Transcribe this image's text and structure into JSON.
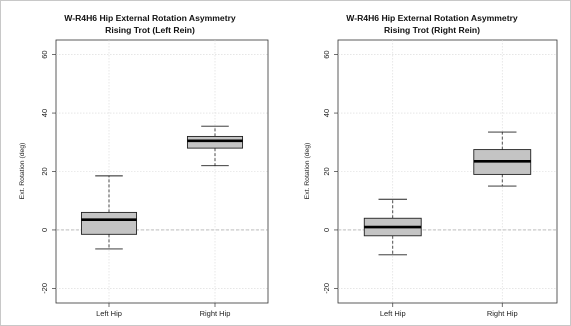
{
  "chart_data": [
    {
      "type": "box",
      "title": "W-R4H6 Hip External Rotation Asymmetry",
      "subtitle": "Rising Trot (Left Rein)",
      "xlabel": "",
      "ylabel": "Ext. Rotation (deg)",
      "ylim": [
        -25,
        65
      ],
      "yticks": [
        -20,
        0,
        20,
        40,
        60
      ],
      "grid": true,
      "reference_line": 0,
      "categories": [
        "Left Hip",
        "Right Hip"
      ],
      "boxes": [
        {
          "category": "Left Hip",
          "min": -6.5,
          "q1": -1.5,
          "median": 3.5,
          "q3": 6,
          "max": 18.5
        },
        {
          "category": "Right Hip",
          "min": 22,
          "q1": 28,
          "median": 30.5,
          "q3": 32,
          "max": 35.5
        }
      ],
      "colors": {
        "box_fill": "#c4c4c4",
        "grid": "#d8d8d8"
      }
    },
    {
      "type": "box",
      "title": "W-R4H6 Hip External Rotation Asymmetry",
      "subtitle": "Rising Trot (Right Rein)",
      "xlabel": "",
      "ylabel": "Ext. Rotation (deg)",
      "ylim": [
        -25,
        65
      ],
      "yticks": [
        -20,
        0,
        20,
        40,
        60
      ],
      "grid": true,
      "reference_line": 0,
      "categories": [
        "Left Hip",
        "Right Hip"
      ],
      "boxes": [
        {
          "category": "Left Hip",
          "min": -8.5,
          "q1": -2,
          "median": 1,
          "q3": 4,
          "max": 10.5
        },
        {
          "category": "Right Hip",
          "min": 15,
          "q1": 19,
          "median": 23.5,
          "q3": 27.5,
          "max": 33.5
        }
      ],
      "colors": {
        "box_fill": "#c4c4c4",
        "grid": "#d8d8d8"
      }
    }
  ]
}
